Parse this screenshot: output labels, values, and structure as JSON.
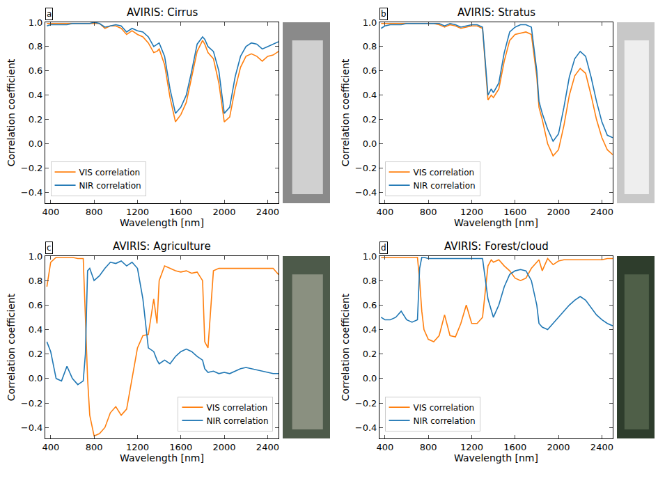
{
  "chart_data": [
    {
      "type": "line",
      "title": "AVIRIS: Cirrus",
      "panel_label": "a",
      "x_label": "Wavelength [nm]",
      "y_label": "Correlation coefficient",
      "x": [
        365,
        400,
        450,
        500,
        550,
        600,
        650,
        700,
        720,
        740,
        760,
        800,
        850,
        900,
        950,
        1000,
        1050,
        1100,
        1150,
        1200,
        1250,
        1300,
        1350,
        1380,
        1400,
        1450,
        1500,
        1550,
        1600,
        1650,
        1700,
        1750,
        1800,
        1820,
        1850,
        1900,
        1950,
        2000,
        2050,
        2100,
        2150,
        2200,
        2250,
        2300,
        2350,
        2400,
        2450,
        2500
      ],
      "xlim": [
        350,
        2500
      ],
      "xticks": [
        400,
        800,
        1200,
        1600,
        2000,
        2400
      ],
      "ylim": [
        -0.49,
        1.0
      ],
      "yticks": [
        {
          "value": -0.4,
          "label": "−0.4"
        },
        {
          "value": -0.2,
          "label": "−0.2"
        },
        {
          "value": 0,
          "label": "0.0"
        },
        0.2,
        0.4,
        0.6,
        0.8,
        {
          "value": 1,
          "label": "1.0"
        }
      ],
      "grid": false,
      "legend": "lower left",
      "series": [
        {
          "name": "VIS correlation",
          "color": "#ff7f0e",
          "values": [
            0.99,
            0.99,
            0.99,
            0.99,
            0.99,
            0.99,
            0.99,
            0.99,
            0.99,
            0.99,
            0.99,
            0.99,
            0.99,
            0.95,
            0.97,
            0.97,
            0.95,
            0.9,
            0.93,
            0.9,
            0.88,
            0.83,
            0.75,
            0.76,
            0.78,
            0.65,
            0.38,
            0.18,
            0.24,
            0.34,
            0.55,
            0.76,
            0.85,
            0.82,
            0.75,
            0.7,
            0.5,
            0.18,
            0.22,
            0.45,
            0.63,
            0.72,
            0.74,
            0.72,
            0.68,
            0.72,
            0.73,
            0.76
          ]
        },
        {
          "name": "NIR correlation",
          "color": "#1f77b4",
          "values": [
            0.97,
            0.98,
            0.98,
            0.98,
            0.98,
            0.99,
            0.99,
            0.99,
            0.99,
            0.99,
            0.99,
            1.0,
            0.99,
            0.96,
            0.97,
            0.98,
            0.97,
            0.92,
            0.95,
            0.93,
            0.92,
            0.88,
            0.8,
            0.82,
            0.83,
            0.72,
            0.45,
            0.25,
            0.3,
            0.4,
            0.6,
            0.82,
            0.88,
            0.86,
            0.8,
            0.76,
            0.6,
            0.25,
            0.3,
            0.55,
            0.72,
            0.8,
            0.83,
            0.82,
            0.78,
            0.8,
            0.82,
            0.84
          ]
        }
      ]
    },
    {
      "type": "line",
      "title": "AVIRIS: Stratus",
      "panel_label": "b",
      "x_label": "Wavelength [nm]",
      "y_label": "Correlation coefficient",
      "x": [
        365,
        400,
        450,
        500,
        550,
        600,
        650,
        700,
        720,
        740,
        760,
        800,
        850,
        900,
        950,
        1000,
        1050,
        1100,
        1150,
        1200,
        1250,
        1300,
        1350,
        1380,
        1400,
        1450,
        1500,
        1550,
        1600,
        1650,
        1700,
        1750,
        1800,
        1820,
        1850,
        1900,
        1950,
        2000,
        2050,
        2100,
        2150,
        2200,
        2250,
        2300,
        2350,
        2400,
        2450,
        2500
      ],
      "xlim": [
        350,
        2500
      ],
      "xticks": [
        400,
        800,
        1200,
        1600,
        2000,
        2400
      ],
      "ylim": [
        -0.49,
        1.0
      ],
      "yticks": [
        {
          "value": -0.4,
          "label": "−0.4"
        },
        {
          "value": -0.2,
          "label": "−0.2"
        },
        {
          "value": 0,
          "label": "0.0"
        },
        0.2,
        0.4,
        0.6,
        0.8,
        {
          "value": 1,
          "label": "1.0"
        }
      ],
      "grid": false,
      "legend": "lower left",
      "series": [
        {
          "name": "VIS correlation",
          "color": "#ff7f0e",
          "values": [
            0.99,
            0.99,
            0.99,
            0.99,
            0.99,
            0.99,
            0.99,
            0.99,
            0.99,
            0.99,
            0.99,
            0.99,
            0.99,
            0.98,
            0.96,
            0.98,
            0.97,
            0.95,
            0.96,
            0.97,
            0.97,
            0.95,
            0.36,
            0.4,
            0.38,
            0.45,
            0.68,
            0.85,
            0.9,
            0.91,
            0.92,
            0.9,
            0.55,
            0.3,
            0.2,
            0.0,
            -0.1,
            -0.05,
            0.15,
            0.4,
            0.56,
            0.62,
            0.58,
            0.4,
            0.2,
            0.05,
            -0.05,
            -0.09
          ]
        },
        {
          "name": "NIR correlation",
          "color": "#1f77b4",
          "values": [
            0.95,
            0.97,
            0.98,
            0.98,
            0.98,
            0.99,
            0.99,
            0.99,
            0.99,
            0.99,
            0.99,
            0.99,
            0.99,
            0.99,
            0.97,
            0.99,
            0.98,
            0.96,
            0.97,
            0.98,
            0.98,
            0.96,
            0.4,
            0.45,
            0.42,
            0.5,
            0.75,
            0.92,
            0.96,
            0.98,
            0.98,
            0.96,
            0.6,
            0.35,
            0.25,
            0.12,
            0.02,
            0.08,
            0.3,
            0.55,
            0.7,
            0.76,
            0.72,
            0.55,
            0.35,
            0.18,
            0.07,
            0.05
          ]
        }
      ]
    },
    {
      "type": "line",
      "title": "AVIRIS: Agriculture",
      "panel_label": "c",
      "x_label": "Wavelength [nm]",
      "y_label": "Correlation coefficient",
      "x": [
        365,
        400,
        450,
        500,
        550,
        600,
        650,
        700,
        720,
        740,
        760,
        800,
        850,
        900,
        950,
        1000,
        1050,
        1100,
        1150,
        1200,
        1250,
        1300,
        1350,
        1380,
        1400,
        1450,
        1500,
        1550,
        1600,
        1650,
        1700,
        1750,
        1800,
        1820,
        1850,
        1900,
        1950,
        2000,
        2050,
        2100,
        2150,
        2200,
        2250,
        2300,
        2350,
        2400,
        2450,
        2500
      ],
      "xlim": [
        350,
        2500
      ],
      "xticks": [
        400,
        800,
        1200,
        1600,
        2000,
        2400
      ],
      "ylim": [
        -0.49,
        1.0
      ],
      "yticks": [
        {
          "value": -0.4,
          "label": "−0.4"
        },
        {
          "value": -0.2,
          "label": "−0.2"
        },
        {
          "value": 0,
          "label": "0.0"
        },
        0.2,
        0.4,
        0.6,
        0.8,
        {
          "value": 1,
          "label": "1.0"
        }
      ],
      "grid": false,
      "legend": "lower right",
      "series": [
        {
          "name": "VIS correlation",
          "color": "#ff7f0e",
          "values": [
            0.75,
            0.95,
            0.99,
            0.99,
            0.99,
            0.99,
            0.98,
            0.98,
            0.5,
            0.0,
            -0.3,
            -0.47,
            -0.45,
            -0.4,
            -0.28,
            -0.23,
            -0.3,
            -0.25,
            0.0,
            0.25,
            0.35,
            0.36,
            0.65,
            0.45,
            0.8,
            0.92,
            0.9,
            0.88,
            0.87,
            0.88,
            0.86,
            0.87,
            0.8,
            0.3,
            0.25,
            0.88,
            0.9,
            0.9,
            0.9,
            0.9,
            0.9,
            0.9,
            0.9,
            0.9,
            0.9,
            0.9,
            0.9,
            0.85
          ]
        },
        {
          "name": "NIR correlation",
          "color": "#1f77b4",
          "values": [
            0.3,
            0.22,
            0.0,
            -0.02,
            0.1,
            0.0,
            -0.05,
            -0.02,
            0.2,
            0.88,
            0.9,
            0.8,
            0.84,
            0.9,
            0.95,
            0.94,
            0.96,
            0.92,
            0.95,
            0.9,
            0.65,
            0.25,
            0.22,
            0.15,
            0.12,
            0.15,
            0.12,
            0.18,
            0.22,
            0.24,
            0.22,
            0.18,
            0.15,
            0.08,
            0.05,
            0.06,
            0.04,
            0.05,
            0.04,
            0.06,
            0.08,
            0.09,
            0.08,
            0.07,
            0.06,
            0.05,
            0.04,
            0.04
          ]
        }
      ]
    },
    {
      "type": "line",
      "title": "AVIRIS: Forest/cloud",
      "panel_label": "d",
      "x_label": "Wavelength [nm]",
      "y_label": "Correlation coefficient",
      "x": [
        365,
        400,
        450,
        500,
        550,
        600,
        650,
        700,
        720,
        740,
        760,
        800,
        850,
        900,
        950,
        1000,
        1050,
        1100,
        1150,
        1200,
        1250,
        1300,
        1350,
        1380,
        1400,
        1450,
        1500,
        1550,
        1600,
        1650,
        1700,
        1750,
        1800,
        1820,
        1850,
        1900,
        1950,
        2000,
        2050,
        2100,
        2150,
        2200,
        2250,
        2300,
        2350,
        2400,
        2450,
        2500
      ],
      "xlim": [
        350,
        2500
      ],
      "xticks": [
        400,
        800,
        1200,
        1600,
        2000,
        2400
      ],
      "ylim": [
        -0.49,
        1.0
      ],
      "yticks": [
        {
          "value": -0.4,
          "label": "−0.4"
        },
        {
          "value": -0.2,
          "label": "−0.2"
        },
        {
          "value": 0,
          "label": "0.0"
        },
        0.2,
        0.4,
        0.6,
        0.8,
        {
          "value": 1,
          "label": "1.0"
        }
      ],
      "grid": false,
      "legend": "lower left",
      "series": [
        {
          "name": "VIS correlation",
          "color": "#ff7f0e",
          "values": [
            0.99,
            0.99,
            0.99,
            0.99,
            0.99,
            0.99,
            0.99,
            0.99,
            0.8,
            0.55,
            0.4,
            0.32,
            0.3,
            0.35,
            0.52,
            0.35,
            0.34,
            0.45,
            0.6,
            0.45,
            0.45,
            0.5,
            0.92,
            0.97,
            0.95,
            0.97,
            0.92,
            0.88,
            0.82,
            0.8,
            0.82,
            0.9,
            0.95,
            0.97,
            0.88,
            0.98,
            0.93,
            0.96,
            0.97,
            0.97,
            0.97,
            0.97,
            0.97,
            0.97,
            0.97,
            0.97,
            0.98,
            0.98
          ]
        },
        {
          "name": "NIR correlation",
          "color": "#1f77b4",
          "values": [
            0.5,
            0.48,
            0.48,
            0.5,
            0.55,
            0.48,
            0.46,
            0.48,
            0.9,
            0.99,
            0.99,
            0.98,
            0.98,
            0.98,
            0.98,
            0.98,
            0.98,
            0.98,
            0.98,
            0.98,
            0.98,
            0.98,
            0.65,
            0.55,
            0.5,
            0.6,
            0.75,
            0.85,
            0.88,
            0.89,
            0.88,
            0.8,
            0.6,
            0.45,
            0.42,
            0.4,
            0.45,
            0.5,
            0.55,
            0.6,
            0.64,
            0.67,
            0.64,
            0.58,
            0.52,
            0.48,
            0.45,
            0.43
          ]
        }
      ]
    }
  ]
}
